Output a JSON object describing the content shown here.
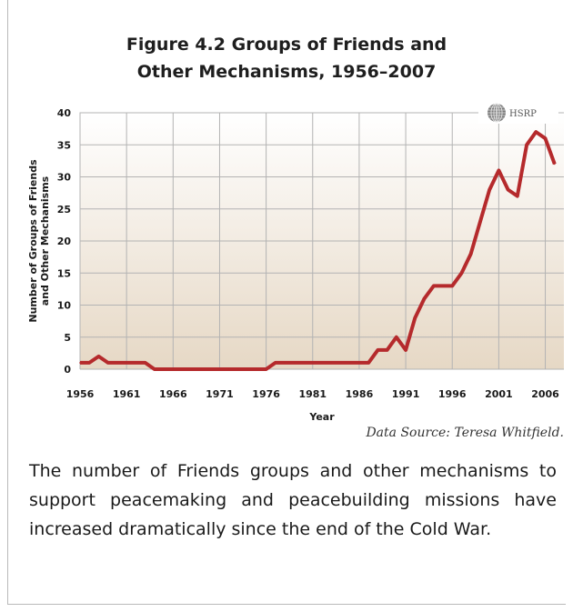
{
  "figure": {
    "title_line1": "Figure 4.2 Groups of Friends and",
    "title_line2": "Other Mechanisms, 1956–2007",
    "logo_text": "HSRP",
    "source": "Data Source: Teresa Whitfield.",
    "caption": "The number of Friends groups and other mechanisms to support peacemaking and peacebuilding missions have increased dramatically since the end of the Cold War."
  },
  "colors": {
    "line": "#b52a2c",
    "grid": "#b3b3b3",
    "bg_top": "#ffffff",
    "bg_bottom": "#e6d8c5"
  },
  "chart_data": {
    "type": "line",
    "title": "Figure 4.2 Groups of Friends and Other Mechanisms, 1956–2007",
    "xlabel": "Year",
    "ylabel_line1": "Number of Groups of Friends",
    "ylabel_line2": "and Other Mechanisms",
    "xlim": [
      1956,
      2008
    ],
    "ylim": [
      0,
      40
    ],
    "x_ticks": [
      1956,
      1961,
      1966,
      1971,
      1976,
      1981,
      1986,
      1991,
      1996,
      2001,
      2006
    ],
    "y_ticks": [
      0,
      5,
      10,
      15,
      20,
      25,
      30,
      35,
      40
    ],
    "grid": true,
    "series": [
      {
        "x": [
          1956,
          1957,
          1958,
          1959,
          1960,
          1961,
          1962,
          1963,
          1964,
          1965,
          1966,
          1967,
          1968,
          1969,
          1970,
          1971,
          1972,
          1973,
          1974,
          1975,
          1976,
          1977,
          1978,
          1979,
          1980,
          1981,
          1982,
          1983,
          1984,
          1985,
          1986,
          1987,
          1988,
          1989,
          1990,
          1991,
          1992,
          1993,
          1994,
          1995,
          1996,
          1997,
          1998,
          1999,
          2000,
          2001,
          2002,
          2003,
          2004,
          2005,
          2006,
          2007
        ],
        "values": [
          1,
          1,
          2,
          1,
          1,
          1,
          1,
          1,
          0,
          0,
          0,
          0,
          0,
          0,
          0,
          0,
          0,
          0,
          0,
          0,
          0,
          1,
          1,
          1,
          1,
          1,
          1,
          1,
          1,
          1,
          1,
          1,
          3,
          3,
          5,
          3,
          8,
          11,
          13,
          13,
          13,
          15,
          18,
          23,
          28,
          31,
          28,
          27,
          35,
          37,
          36,
          32
        ]
      }
    ]
  }
}
